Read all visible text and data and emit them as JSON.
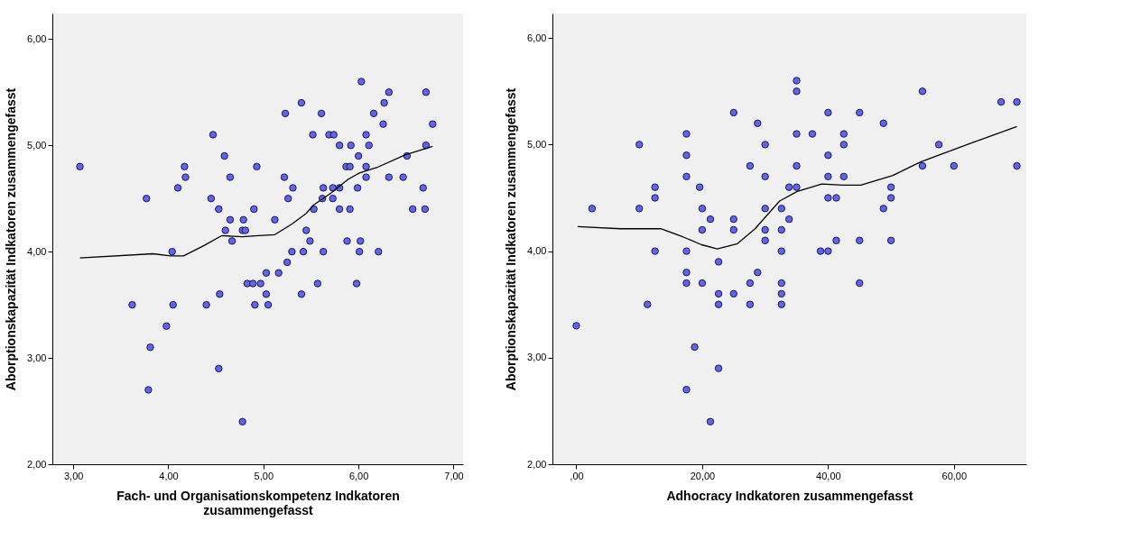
{
  "chart_data": [
    {
      "type": "scatter",
      "xlabel": "Fach- und Organisationskompetenz Indkatoren zusammengefasst",
      "ylabel": "Aborptionskapazität Indkatoren zusammengefasst",
      "xlim": [
        2.78,
        7.1
      ],
      "ylim": [
        2.0,
        6.24
      ],
      "xticks": [
        {
          "value": 3,
          "label": "3,00"
        },
        {
          "value": 4,
          "label": "4,00"
        },
        {
          "value": 5,
          "label": "5,00"
        },
        {
          "value": 6,
          "label": "6,00"
        },
        {
          "value": 7,
          "label": "7,00"
        }
      ],
      "yticks": [
        {
          "value": 2,
          "label": "2,00"
        },
        {
          "value": 3,
          "label": "3,00"
        },
        {
          "value": 4,
          "label": "4,00"
        },
        {
          "value": 5,
          "label": "5,00"
        },
        {
          "value": 6,
          "label": "6,00"
        }
      ],
      "grid": false,
      "legend": false,
      "series": [
        {
          "type": "scatter",
          "marker": "circle",
          "color": "#6262f5",
          "x": [
            3.07,
            3.77,
            4.04,
            4.1,
            4.17,
            4.18,
            4.47,
            4.45,
            4.53,
            4.59,
            4.65,
            4.65,
            4.6,
            4.67,
            4.79,
            4.78,
            4.81,
            4.9,
            4.93,
            5.12,
            5.22,
            5.23,
            5.26,
            5.31,
            5.4,
            5.45,
            5.49,
            5.3,
            5.42,
            5.52,
            5.53,
            5.61,
            5.63,
            5.62,
            5.63,
            5.69,
            5.74,
            5.73,
            5.73,
            5.8,
            5.8,
            5.8,
            5.87,
            5.91,
            5.88,
            5.92,
            5.91,
            6.0,
            5.99,
            6.03,
            6.02,
            6.01,
            6.08,
            6.08,
            6.08,
            6.11,
            6.16,
            6.21,
            6.26,
            6.27,
            6.32,
            6.32,
            6.47,
            6.51,
            6.57,
            6.68,
            6.7,
            6.71,
            6.71,
            6.78,
            5.03,
            5.16,
            5.25,
            4.83,
            4.89,
            4.97,
            5.57,
            5.98,
            4.54,
            5.03,
            5.4,
            3.62,
            4.05,
            4.4,
            4.91,
            5.05,
            3.98,
            3.81,
            4.53,
            3.79,
            4.78
          ],
          "values": [
            4.8,
            4.5,
            4.0,
            4.6,
            4.8,
            4.7,
            5.1,
            4.5,
            4.4,
            4.9,
            4.7,
            4.3,
            4.2,
            4.1,
            4.3,
            4.2,
            4.2,
            4.4,
            4.8,
            4.3,
            4.7,
            5.3,
            4.5,
            4.6,
            5.4,
            4.2,
            4.1,
            4.0,
            4.0,
            5.1,
            4.4,
            5.3,
            4.6,
            4.5,
            4.0,
            5.1,
            5.1,
            4.6,
            4.5,
            5.0,
            4.6,
            4.4,
            4.8,
            4.8,
            4.1,
            5.0,
            4.4,
            4.9,
            4.6,
            5.6,
            4.1,
            4.0,
            5.1,
            4.8,
            4.7,
            5.0,
            5.3,
            4.0,
            5.2,
            5.4,
            5.5,
            4.7,
            4.7,
            4.9,
            4.4,
            4.6,
            4.4,
            5.0,
            5.5,
            5.2,
            3.8,
            3.8,
            3.9,
            3.7,
            3.7,
            3.7,
            3.7,
            3.7,
            3.6,
            3.6,
            3.6,
            3.5,
            3.5,
            3.5,
            3.5,
            3.5,
            3.3,
            3.1,
            2.9,
            2.7,
            2.4
          ]
        },
        {
          "type": "line",
          "marker": "none",
          "color": "#000000",
          "x": [
            3.07,
            3.84,
            4.02,
            4.16,
            4.38,
            4.56,
            4.78,
            4.95,
            5.12,
            5.3,
            5.45,
            5.53,
            5.71,
            5.89,
            6.01,
            6.19,
            6.49,
            6.78
          ],
          "values": [
            3.94,
            3.98,
            3.96,
            3.96,
            4.06,
            4.15,
            4.14,
            4.15,
            4.16,
            4.26,
            4.36,
            4.44,
            4.55,
            4.68,
            4.74,
            4.79,
            4.91,
            4.99
          ]
        }
      ]
    },
    {
      "type": "scatter",
      "xlabel": "Adhocracy Indkatoren zusammengefasst",
      "ylabel": "Aborptionskapazität Indkatoren zusammengefasst",
      "xlim": [
        -3.8,
        71.5
      ],
      "ylim": [
        2.0,
        6.23
      ],
      "xticks": [
        {
          "value": 0,
          "label": ",00"
        },
        {
          "value": 20,
          "label": "20,00"
        },
        {
          "value": 40,
          "label": "40,00"
        },
        {
          "value": 60,
          "label": "60,00"
        }
      ],
      "yticks": [
        {
          "value": 2,
          "label": "2,00"
        },
        {
          "value": 3,
          "label": "3,00"
        },
        {
          "value": 4,
          "label": "4,00"
        },
        {
          "value": 5,
          "label": "5,00"
        },
        {
          "value": 6,
          "label": "6,00"
        }
      ],
      "grid": false,
      "legend": false,
      "series": [
        {
          "type": "scatter",
          "marker": "circle",
          "color": "#6262f5",
          "x": [
            2.5,
            10.0,
            10.0,
            12.5,
            12.5,
            12.5,
            17.5,
            17.5,
            17.5,
            17.5,
            17.5,
            19.6,
            20.0,
            20.0,
            21.3,
            22.6,
            25.0,
            25.0,
            25.0,
            27.6,
            28.8,
            28.8,
            30.0,
            30.0,
            30.0,
            30.0,
            30.0,
            32.6,
            32.6,
            32.6,
            33.8,
            33.8,
            35.0,
            35.0,
            35.0,
            35.0,
            35.0,
            37.5,
            38.8,
            40.0,
            40.0,
            40.0,
            40.0,
            40.0,
            41.3,
            41.3,
            42.5,
            42.5,
            42.5,
            45.0,
            45.0,
            48.8,
            48.8,
            50.0,
            50.0,
            50.0,
            55.0,
            55.0,
            57.6,
            60.0,
            67.5,
            70.0,
            70.0,
            17.5,
            20.0,
            27.6,
            32.6,
            45.0,
            22.6,
            25.0,
            32.6,
            11.3,
            22.6,
            27.6,
            32.6,
            0.0,
            18.8,
            22.6,
            17.5,
            21.3
          ],
          "values": [
            4.4,
            5.0,
            4.4,
            4.6,
            4.5,
            4.0,
            5.1,
            4.9,
            4.7,
            4.0,
            3.8,
            4.6,
            4.4,
            4.2,
            4.3,
            3.9,
            5.3,
            4.3,
            4.2,
            4.8,
            5.2,
            3.8,
            5.0,
            4.7,
            4.4,
            4.2,
            4.1,
            4.4,
            4.2,
            4.0,
            4.6,
            4.3,
            5.6,
            5.5,
            5.1,
            4.8,
            4.6,
            5.1,
            4.0,
            5.3,
            4.9,
            4.7,
            4.5,
            4.0,
            4.5,
            4.1,
            5.1,
            5.0,
            4.7,
            5.3,
            4.1,
            5.2,
            4.4,
            4.6,
            4.5,
            4.1,
            5.5,
            4.8,
            5.0,
            4.8,
            5.4,
            5.4,
            4.8,
            3.7,
            3.7,
            3.7,
            3.7,
            3.7,
            3.6,
            3.6,
            3.6,
            3.5,
            3.5,
            3.5,
            3.5,
            3.3,
            3.1,
            2.9,
            2.7,
            2.4
          ]
        },
        {
          "type": "line",
          "marker": "none",
          "color": "#000000",
          "x": [
            0.2,
            7.0,
            13.5,
            17.1,
            19.9,
            22.4,
            25.6,
            28.4,
            32.3,
            35.1,
            39.0,
            42.4,
            45.2,
            50.3,
            54.8,
            62.1,
            70.0
          ],
          "values": [
            4.23,
            4.21,
            4.21,
            4.13,
            4.06,
            4.02,
            4.07,
            4.21,
            4.47,
            4.56,
            4.63,
            4.62,
            4.62,
            4.71,
            4.84,
            5.0,
            5.17
          ]
        }
      ]
    }
  ]
}
